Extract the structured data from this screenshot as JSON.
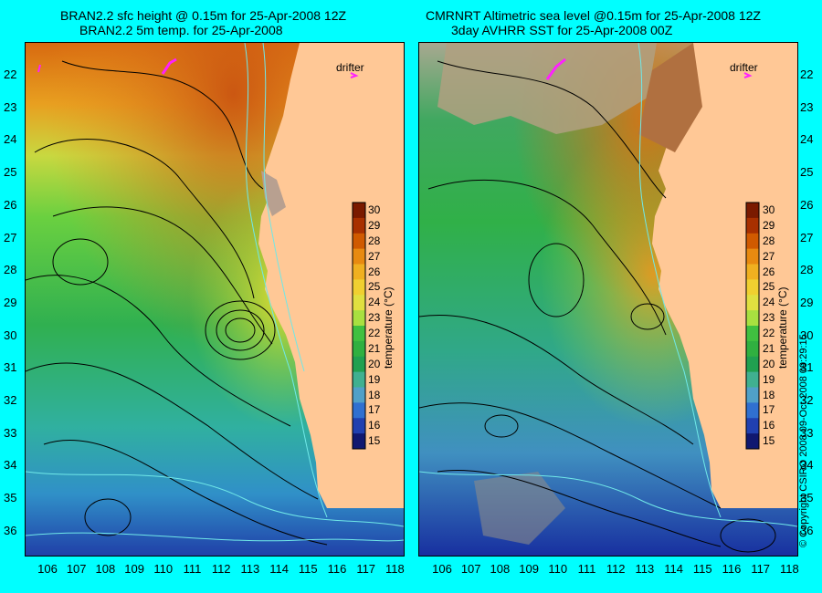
{
  "left_panel": {
    "title_line1": "BRAN2.2 sfc height @ 0.15m for 25-Apr-2008 12Z",
    "title_line2": "BRAN2.2 5m temp. for 25-Apr-2008",
    "legend_drifter": "drifter"
  },
  "right_panel": {
    "title_line1": "CMRNRT Altimetric sea level  @0.15m  for 25-Apr-2008 12Z",
    "title_line2": "3day AVHRR SST for 25-Apr-2008 00Z",
    "legend_drifter": "drifter"
  },
  "latitude_labels": [
    "22",
    "23",
    "24",
    "25",
    "26",
    "27",
    "28",
    "29",
    "30",
    "31",
    "32",
    "33",
    "34",
    "35",
    "36"
  ],
  "longitude_labels": [
    "106",
    "107",
    "108",
    "109",
    "110",
    "111",
    "112",
    "113",
    "114",
    "115",
    "116",
    "117",
    "118"
  ],
  "colorbar": {
    "label": "temperature (°C)",
    "ticks": [
      "30",
      "29",
      "28",
      "27",
      "26",
      "25",
      "24",
      "23",
      "22",
      "21",
      "20",
      "19",
      "18",
      "17",
      "16",
      "15"
    ],
    "colors": [
      "#7a1a00",
      "#a83000",
      "#d05a00",
      "#e88a10",
      "#f0b020",
      "#f0d030",
      "#e0e040",
      "#a8e040",
      "#40c040",
      "#30b040",
      "#20a050",
      "#40b090",
      "#50a0c8",
      "#3070d0",
      "#2040b0",
      "#101870"
    ]
  },
  "copyright": "© Copyright CSIRO 2008    09-Oct-2008 09:29:15"
}
